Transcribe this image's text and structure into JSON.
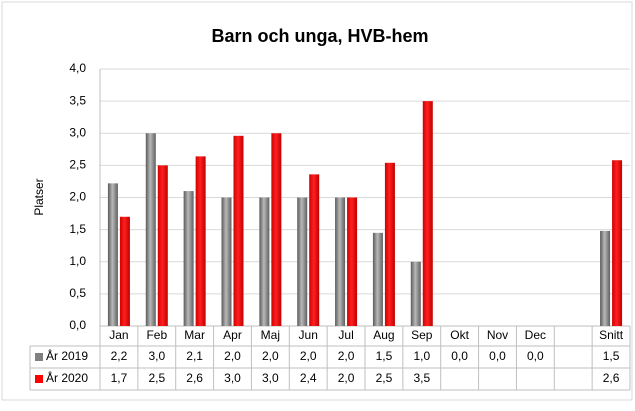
{
  "chart_data": {
    "type": "bar",
    "title": "Barn och unga, HVB-hem",
    "y_label": "Platser",
    "categories": [
      "Jan",
      "Feb",
      "Mar",
      "Apr",
      "Maj",
      "Jun",
      "Jul",
      "Aug",
      "Sep",
      "Okt",
      "Nov",
      "Dec",
      null,
      "Snitt"
    ],
    "series": [
      {
        "name": "År 2019",
        "color": "#808080",
        "values": [
          2.22,
          3.0,
          2.1,
          2.0,
          2.0,
          2.0,
          2.0,
          1.45,
          1.0,
          0.0,
          0.0,
          0.0,
          null,
          1.48
        ],
        "value_labels": [
          "2,2",
          "3,0",
          "2,1",
          "2,0",
          "2,0",
          "2,0",
          "2,0",
          "1,5",
          "1,0",
          "0,0",
          "0,0",
          "0,0",
          null,
          "1,5"
        ]
      },
      {
        "name": "År 2020",
        "color": "#ff0000",
        "values": [
          1.7,
          2.5,
          2.64,
          2.96,
          3.0,
          2.36,
          2.0,
          2.54,
          3.5,
          null,
          null,
          null,
          null,
          2.58
        ],
        "value_labels": [
          "1,7",
          "2,5",
          "2,6",
          "3,0",
          "3,0",
          "2,4",
          "2,0",
          "2,5",
          "3,5",
          null,
          null,
          null,
          null,
          "2,6"
        ]
      }
    ],
    "ylim": [
      0,
      4
    ],
    "yticks": [
      {
        "value": 0,
        "label": "0,0"
      },
      {
        "value": 0.5,
        "label": "0,5"
      },
      {
        "value": 1,
        "label": "1,0"
      },
      {
        "value": 1.5,
        "label": "1,5"
      },
      {
        "value": 2,
        "label": "2,0"
      },
      {
        "value": 2.5,
        "label": "2,5"
      },
      {
        "value": 3,
        "label": "3,0"
      },
      {
        "value": 3.5,
        "label": "3,5"
      },
      {
        "value": 4,
        "label": "4,0"
      }
    ],
    "grid": true
  }
}
